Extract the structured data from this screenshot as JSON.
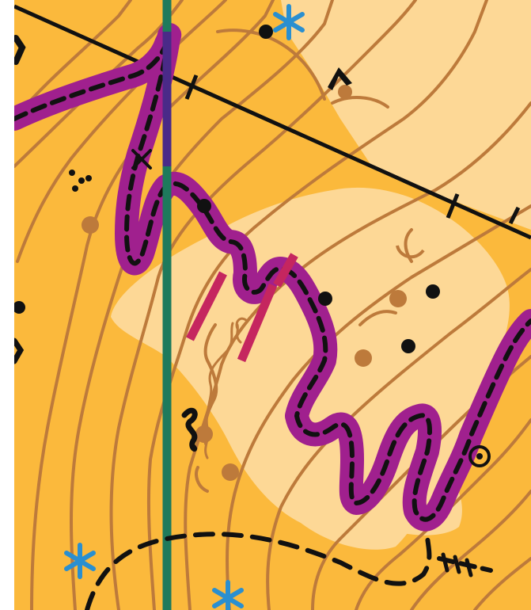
{
  "map": {
    "type": "orienteering-map",
    "colors": {
      "open_land": "#fbb93c",
      "rough_open": "#fdd896",
      "contour": "#bd7a3b",
      "course_overprint": "#a0208e",
      "track": "#111111",
      "water_line": "#1e7a5c",
      "special_object": "#2a8fd0",
      "earth_wall": "#c5265f"
    },
    "symbols": [
      "contour-line",
      "dashed-track",
      "power-line",
      "course-leg-overprint",
      "boulder-dot",
      "earth-knoll",
      "special-object-star",
      "stream",
      "earth-wall",
      "pit"
    ]
  }
}
